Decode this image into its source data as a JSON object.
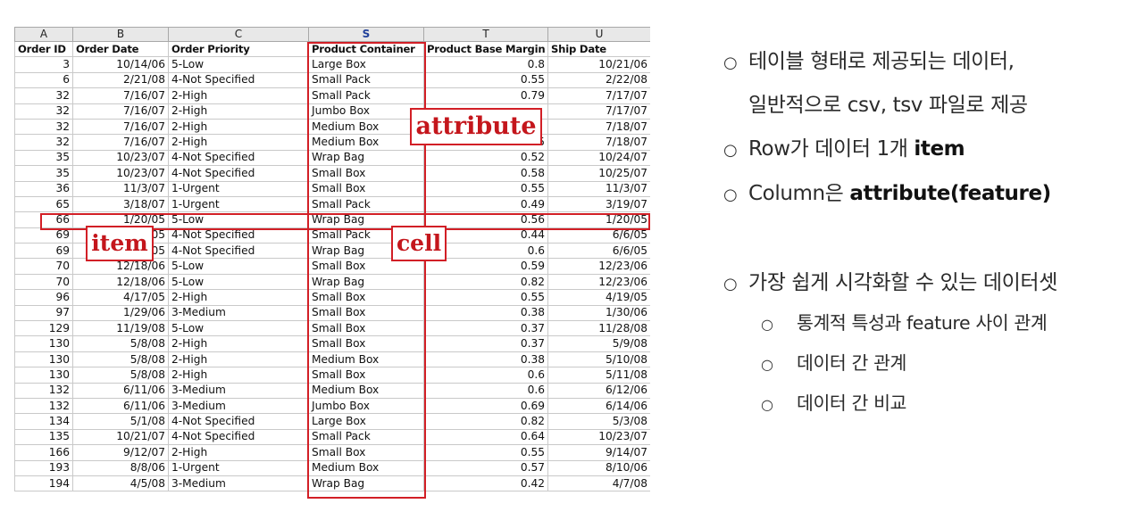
{
  "spreadsheet": {
    "column_letters": [
      "A",
      "B",
      "C",
      "S",
      "T",
      "U"
    ],
    "selected_letter_index": 3,
    "headers": [
      "Order ID",
      "Order Date",
      "Order Priority",
      "Product Container",
      "Product Base Margin",
      "Ship Date"
    ],
    "rows": [
      [
        "3",
        "10/14/06",
        "5-Low",
        "Large Box",
        "0.8",
        "10/21/06"
      ],
      [
        "6",
        "2/21/08",
        "4-Not Specified",
        "Small Pack",
        "0.55",
        "2/22/08"
      ],
      [
        "32",
        "7/16/07",
        "2-High",
        "Small Pack",
        "0.79",
        "7/17/07"
      ],
      [
        "32",
        "7/16/07",
        "2-High",
        "Jumbo Box",
        "",
        "7/17/07"
      ],
      [
        "32",
        "7/16/07",
        "2-High",
        "Medium Box",
        "",
        "7/18/07"
      ],
      [
        "32",
        "7/16/07",
        "2-High",
        "Medium Box",
        "0.65",
        "7/18/07"
      ],
      [
        "35",
        "10/23/07",
        "4-Not Specified",
        "Wrap Bag",
        "0.52",
        "10/24/07"
      ],
      [
        "35",
        "10/23/07",
        "4-Not Specified",
        "Small Box",
        "0.58",
        "10/25/07"
      ],
      [
        "36",
        "11/3/07",
        "1-Urgent",
        "Small Box",
        "0.55",
        "11/3/07"
      ],
      [
        "65",
        "3/18/07",
        "1-Urgent",
        "Small Pack",
        "0.49",
        "3/19/07"
      ],
      [
        "66",
        "1/20/05",
        "5-Low",
        "Wrap Bag",
        "0.56",
        "1/20/05"
      ],
      [
        "69",
        "6/4/05",
        "4-Not Specified",
        "Small Pack",
        "0.44",
        "6/6/05"
      ],
      [
        "69",
        "6/4/05",
        "4-Not Specified",
        "Wrap Bag",
        "0.6",
        "6/6/05"
      ],
      [
        "70",
        "12/18/06",
        "5-Low",
        "Small Box",
        "0.59",
        "12/23/06"
      ],
      [
        "70",
        "12/18/06",
        "5-Low",
        "Wrap Bag",
        "0.82",
        "12/23/06"
      ],
      [
        "96",
        "4/17/05",
        "2-High",
        "Small Box",
        "0.55",
        "4/19/05"
      ],
      [
        "97",
        "1/29/06",
        "3-Medium",
        "Small Box",
        "0.38",
        "1/30/06"
      ],
      [
        "129",
        "11/19/08",
        "5-Low",
        "Small Box",
        "0.37",
        "11/28/08"
      ],
      [
        "130",
        "5/8/08",
        "2-High",
        "Small Box",
        "0.37",
        "5/9/08"
      ],
      [
        "130",
        "5/8/08",
        "2-High",
        "Medium Box",
        "0.38",
        "5/10/08"
      ],
      [
        "130",
        "5/8/08",
        "2-High",
        "Small Box",
        "0.6",
        "5/11/08"
      ],
      [
        "132",
        "6/11/06",
        "3-Medium",
        "Medium Box",
        "0.6",
        "6/12/06"
      ],
      [
        "132",
        "6/11/06",
        "3-Medium",
        "Jumbo Box",
        "0.69",
        "6/14/06"
      ],
      [
        "134",
        "5/1/08",
        "4-Not Specified",
        "Large Box",
        "0.82",
        "5/3/08"
      ],
      [
        "135",
        "10/21/07",
        "4-Not Specified",
        "Small Pack",
        "0.64",
        "10/23/07"
      ],
      [
        "166",
        "9/12/07",
        "2-High",
        "Small Box",
        "0.55",
        "9/14/07"
      ],
      [
        "193",
        "8/8/06",
        "1-Urgent",
        "Medium Box",
        "0.57",
        "8/10/06"
      ],
      [
        "194",
        "4/5/08",
        "3-Medium",
        "Wrap Bag",
        "0.42",
        "4/7/08"
      ]
    ],
    "numeric_columns": [
      0,
      1,
      4,
      5
    ]
  },
  "annotations": {
    "attribute_label": "attribute",
    "item_label": "item",
    "cell_label": "cell",
    "color": "#d21f26"
  },
  "notes": {
    "bullet_glyph": "○",
    "line1": "테이블 형태로 제공되는 데이터,",
    "line1_cont": "일반적으로 csv, tsv 파일로 제공",
    "line2_prefix": "Row가 데이터 1개 ",
    "line2_bold": "item",
    "line3_prefix": "Column은 ",
    "line3_bold": "attribute(feature)",
    "line4": "가장 쉽게 시각화할 수 있는 데이터셋",
    "sub1": "통계적 특성과 feature 사이 관계",
    "sub2": "데이터 간 관계",
    "sub3": "데이터 간 비교"
  }
}
